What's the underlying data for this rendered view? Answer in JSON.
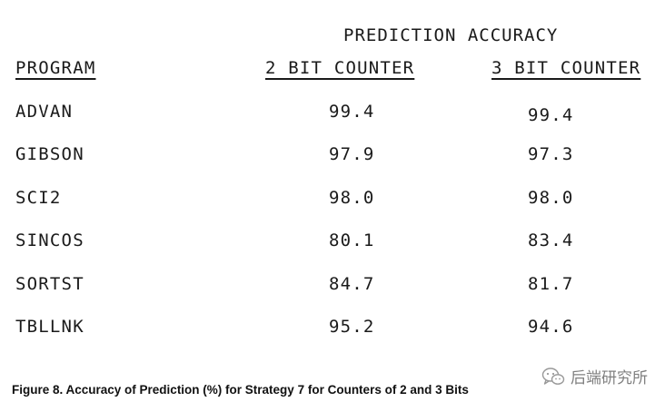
{
  "table": {
    "group_header": "PREDICTION ACCURACY",
    "columns": {
      "program": "PROGRAM",
      "two_bit": "2 BIT COUNTER",
      "three_bit": "3 BIT COUNTER"
    },
    "rows": [
      {
        "program": "ADVAN",
        "two_bit": "99.4",
        "three_bit": "99.4"
      },
      {
        "program": "GIBSON",
        "two_bit": "97.9",
        "three_bit": "97.3"
      },
      {
        "program": "SCI2",
        "two_bit": "98.0",
        "three_bit": "98.0"
      },
      {
        "program": "SINCOS",
        "two_bit": "80.1",
        "three_bit": "83.4"
      },
      {
        "program": "SORTST",
        "two_bit": "84.7",
        "three_bit": "81.7"
      },
      {
        "program": "TBLLNK",
        "two_bit": "95.2",
        "three_bit": "94.6"
      }
    ]
  },
  "caption": "Figure 8. Accuracy of Prediction (%) for Strategy 7 for Counters of 2 and 3 Bits",
  "watermark": {
    "icon": "wechat-icon",
    "text": "后端研究所"
  }
}
